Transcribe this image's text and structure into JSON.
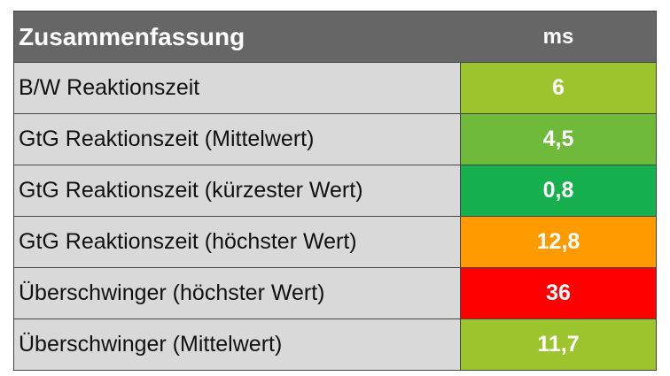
{
  "table": {
    "header": [
      "Zusammenfassung",
      "ms"
    ],
    "rows": [
      {
        "label": "B/W Reaktionszeit",
        "value": "6",
        "color": "#9cc42c"
      },
      {
        "label": "GtG Reaktionszeit (Mittelwert)",
        "value": "4,5",
        "color": "#6fba3b"
      },
      {
        "label": "GtG Reaktionszeit (kürzester Wert)",
        "value": "0,8",
        "color": "#17b04e"
      },
      {
        "label": "GtG Reaktionszeit (höchster Wert)",
        "value": "12,8",
        "color": "#ff9b00"
      },
      {
        "label": "Überschwinger (höchster Wert)",
        "value": "36",
        "color": "#ff0000"
      },
      {
        "label": "Überschwinger (Mittelwert)",
        "value": "11,7",
        "color": "#9cc42c"
      }
    ]
  }
}
